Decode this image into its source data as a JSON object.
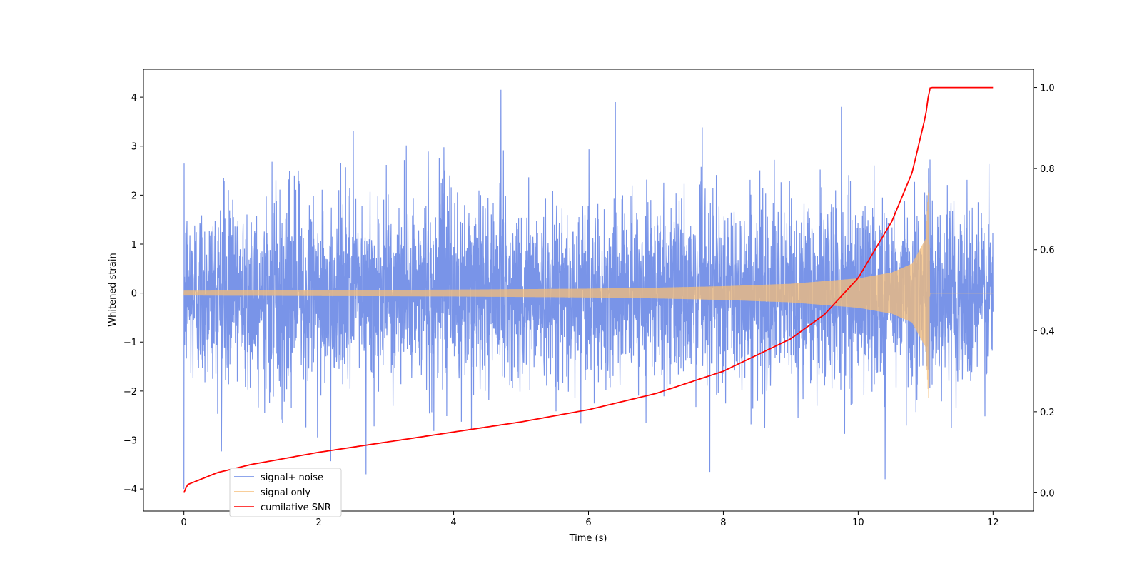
{
  "chart_data": {
    "type": "line",
    "title": "",
    "xlabel": "Time (s)",
    "ylabel": "Whitened strain",
    "y2label": "",
    "xlim": [
      -0.6,
      12.6
    ],
    "ylim": [
      -4.45,
      4.57
    ],
    "y2lim": [
      -0.045,
      1.045
    ],
    "xticks": [
      0,
      2,
      4,
      6,
      8,
      10,
      12
    ],
    "xtick_labels": [
      "0",
      "2",
      "4",
      "6",
      "8",
      "10",
      "12"
    ],
    "yticks": [
      -4,
      -3,
      -2,
      -1,
      0,
      1,
      2,
      3,
      4
    ],
    "ytick_labels": [
      "−4",
      "−3",
      "−2",
      "−1",
      "0",
      "1",
      "2",
      "3",
      "4"
    ],
    "y2ticks": [
      0.0,
      0.2,
      0.4,
      0.6,
      0.8,
      1.0
    ],
    "y2tick_labels": [
      "0.0",
      "0.2",
      "0.4",
      "0.6",
      "0.8",
      "1.0"
    ],
    "grid": false,
    "legend_position": "lower-left",
    "series": [
      {
        "name": "signal+ noise",
        "color": "#6a88e6",
        "axis": "left",
        "description_x_range": [
          0,
          12
        ],
        "typical_range": [
          -2.3,
          2.3
        ],
        "extremes": [
          {
            "x": 0.0,
            "y": -4.0
          },
          {
            "x": 4.7,
            "y": 4.15
          },
          {
            "x": 6.4,
            "y": 3.9
          },
          {
            "x": 9.75,
            "y": 3.8
          },
          {
            "x": 10.4,
            "y": -3.8
          },
          {
            "x": 2.7,
            "y": -3.7
          },
          {
            "x": 7.8,
            "y": -3.65
          }
        ]
      },
      {
        "name": "signal only",
        "color": "#f5be78",
        "axis": "left",
        "x": [
          0,
          1,
          2,
          3,
          4,
          5,
          6,
          7,
          8,
          9,
          10,
          10.5,
          10.8,
          11.0,
          11.05,
          11.06,
          12
        ],
        "amplitude": [
          0.05,
          0.055,
          0.06,
          0.065,
          0.07,
          0.08,
          0.09,
          0.11,
          0.14,
          0.19,
          0.3,
          0.42,
          0.6,
          1.1,
          2.3,
          0.0,
          0.0
        ]
      },
      {
        "name": "cumilative SNR",
        "color": "#ff0000",
        "axis": "right",
        "x": [
          0,
          0.05,
          0.5,
          1,
          2,
          3,
          4,
          5,
          6,
          7,
          8,
          9,
          9.5,
          10,
          10.5,
          10.8,
          11.0,
          11.05,
          11.07,
          12
        ],
        "y": [
          0.0,
          0.02,
          0.05,
          0.07,
          0.1,
          0.125,
          0.15,
          0.175,
          0.205,
          0.245,
          0.3,
          0.38,
          0.44,
          0.53,
          0.67,
          0.79,
          0.93,
          0.99,
          1.0,
          1.0
        ]
      }
    ]
  }
}
